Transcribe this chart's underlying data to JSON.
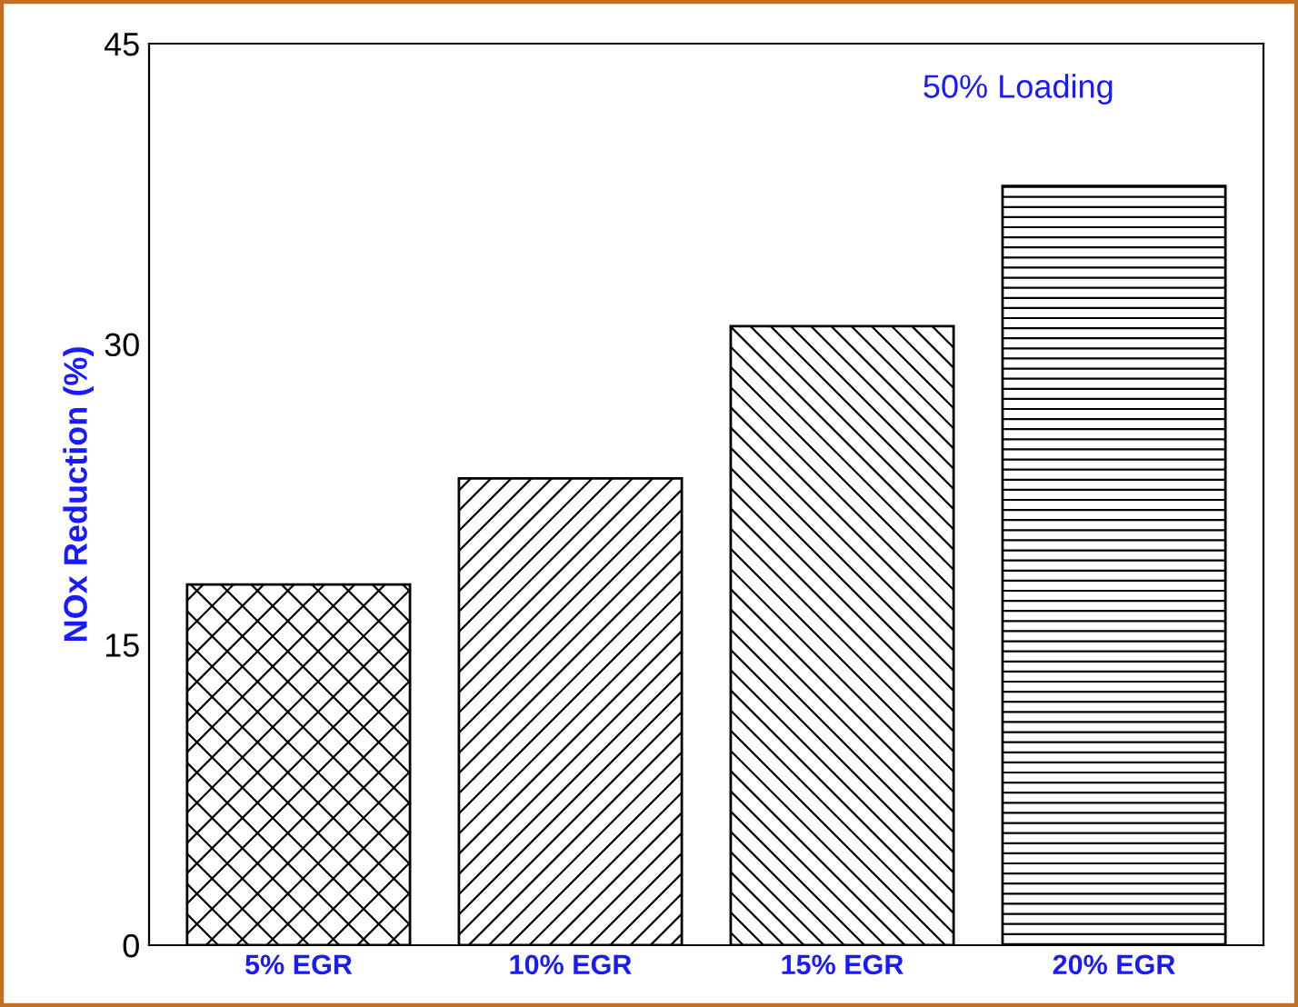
{
  "chart_data": {
    "type": "bar",
    "ylabel": "NOx Reduction (%)",
    "annotations": [
      "50% Loading"
    ],
    "categories": [
      "5% EGR",
      "10% EGR",
      "15% EGR",
      "20% EGR"
    ],
    "values": [
      18,
      23.3,
      30.9,
      37.9
    ],
    "color": "#000000",
    "ylim": [
      0,
      45
    ],
    "yticks": [
      0,
      15,
      30,
      45
    ],
    "grid": false,
    "legend": false
  }
}
